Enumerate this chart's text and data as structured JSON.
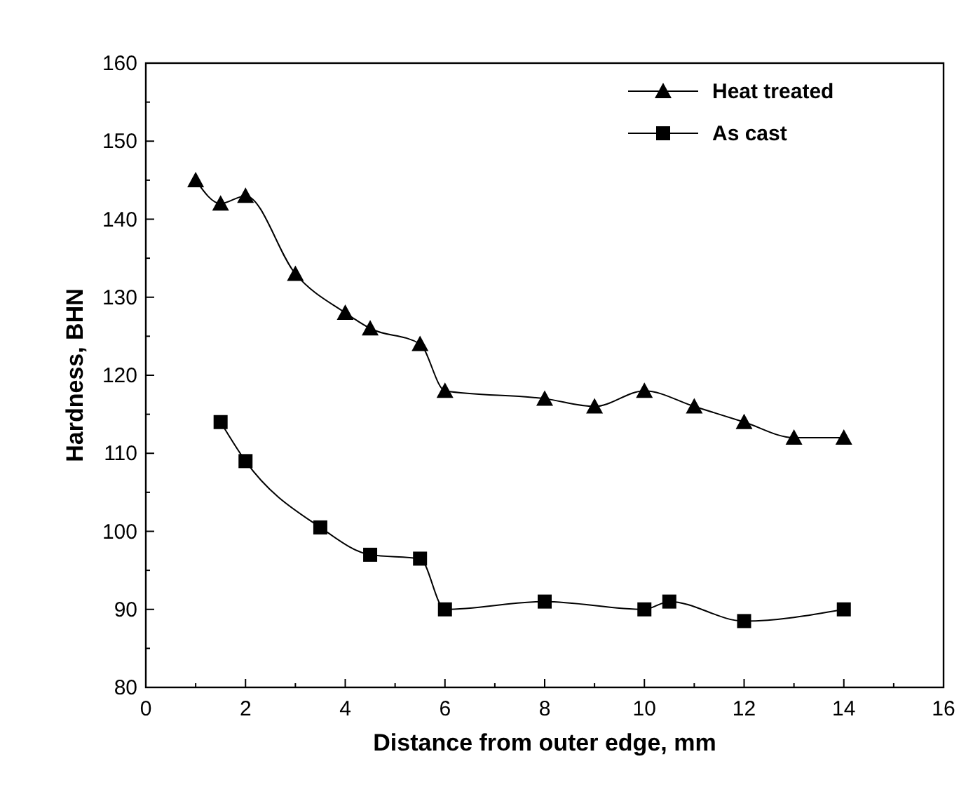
{
  "chart_data": {
    "type": "line",
    "xlabel": "Distance from outer edge, mm",
    "ylabel": "Hardness, BHN",
    "xlim": [
      0,
      16
    ],
    "xticks": [
      0,
      2,
      4,
      6,
      8,
      10,
      12,
      14,
      16
    ],
    "ylim": [
      80,
      160
    ],
    "yticks": [
      80,
      90,
      100,
      110,
      120,
      130,
      140,
      150,
      160
    ],
    "legend": "top right",
    "grid": false,
    "series": [
      {
        "name": "Heat treated",
        "color": "#000000",
        "marker": "triangle",
        "x": [
          1,
          1.5,
          2,
          3,
          4,
          4.5,
          5.5,
          6,
          8,
          9,
          10,
          11,
          12,
          13,
          14
        ],
        "values": [
          145,
          142,
          143,
          133,
          128,
          126,
          124,
          118,
          117,
          116,
          118,
          116,
          114,
          112,
          112
        ]
      },
      {
        "name": "As cast",
        "color": "#000000",
        "marker": "square",
        "x": [
          1.5,
          2,
          3.5,
          4.5,
          5.5,
          6,
          8,
          10,
          10.5,
          12,
          14
        ],
        "values": [
          114,
          109,
          100.5,
          97,
          96.5,
          90,
          91,
          90,
          91,
          88.5,
          90
        ]
      }
    ]
  }
}
